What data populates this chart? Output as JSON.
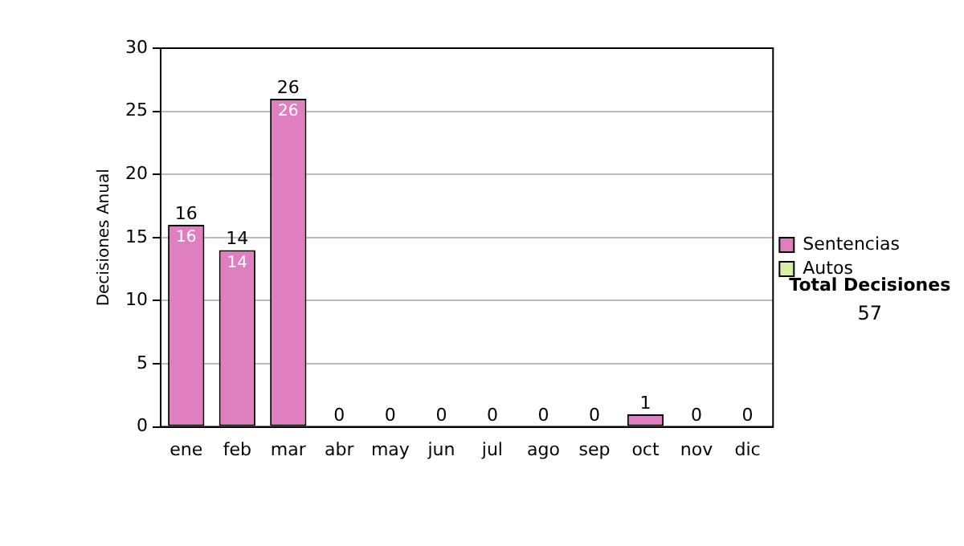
{
  "chart_data": {
    "type": "bar",
    "stacked": true,
    "ylabel": "Decisiones Anual",
    "categories": [
      "ene",
      "feb",
      "mar",
      "abr",
      "may",
      "jun",
      "jul",
      "ago",
      "sep",
      "oct",
      "nov",
      "dic"
    ],
    "series": [
      {
        "name": "Sentencias",
        "color": "#e07fbf",
        "values": [
          16,
          14,
          26,
          0,
          0,
          0,
          0,
          0,
          0,
          1,
          0,
          0
        ],
        "value_labels": [
          "16",
          "14",
          "26",
          null,
          null,
          null,
          null,
          null,
          null,
          null,
          null,
          null
        ]
      },
      {
        "name": "Autos",
        "color": "#d9efa0",
        "values": [
          0,
          0,
          0,
          0,
          0,
          0,
          0,
          0,
          0,
          0,
          0,
          0
        ]
      }
    ],
    "totals": [
      "16",
      "14",
      "26",
      "0",
      "0",
      "0",
      "0",
      "0",
      "0",
      "1",
      "0",
      "0"
    ],
    "ylim": [
      0,
      30
    ],
    "yticks": [
      0,
      5,
      10,
      15,
      20,
      25,
      30
    ],
    "grid": "y",
    "legend": "right",
    "annotations": [
      "Total Decisiones",
      "57"
    ]
  }
}
